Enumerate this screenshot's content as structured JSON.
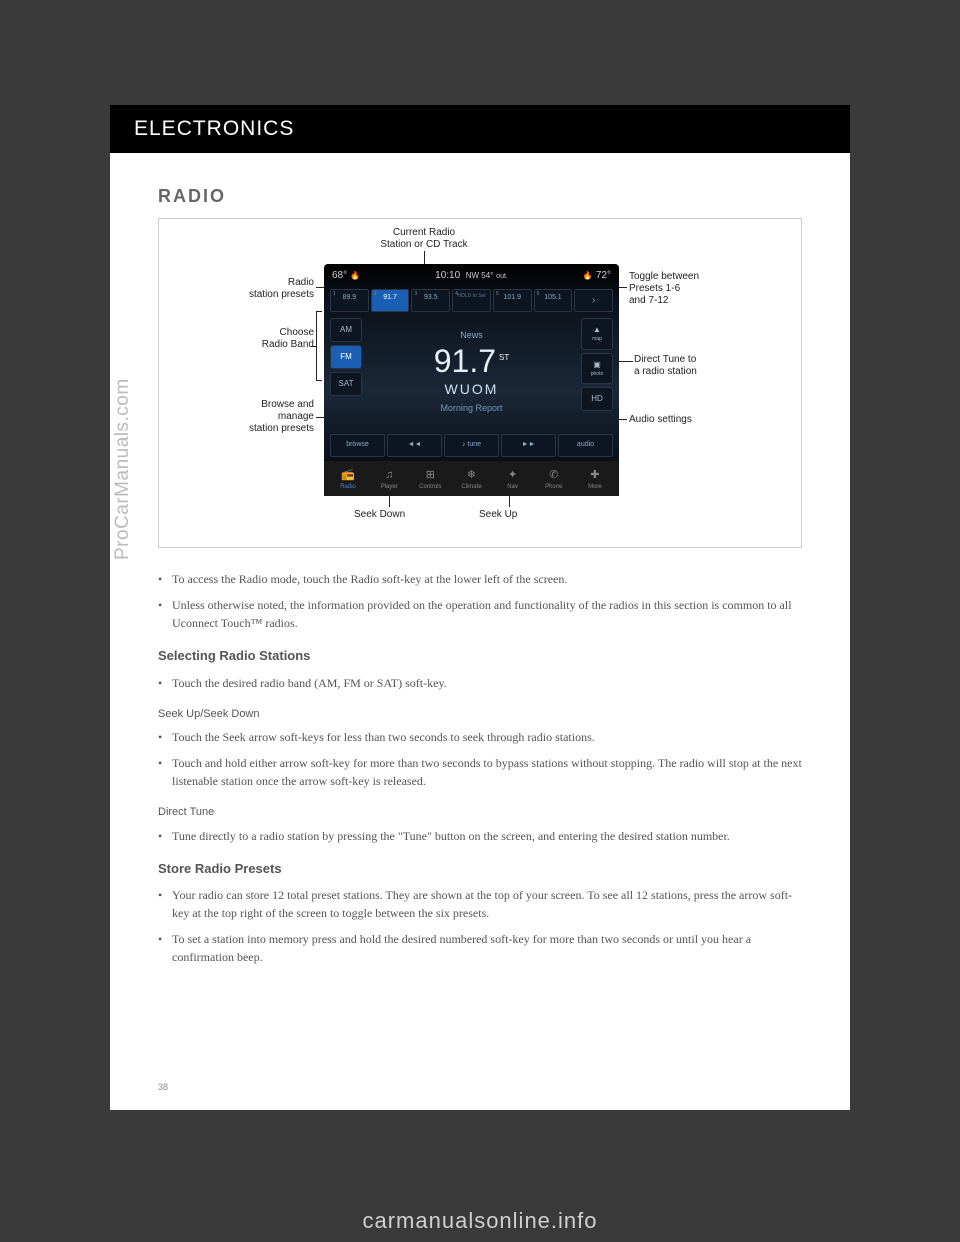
{
  "header": "ELECTRONICS",
  "section_title": "RADIO",
  "callouts": {
    "top": "Current Radio\nStation or CD Track",
    "preset_label": "Radio\nstation presets",
    "band_label": "Choose\nRadio Band",
    "browse_label": "Browse and\nmanage\nstation presets",
    "toggle_label": "Toggle between\nPresets 1-6\nand 7-12",
    "direct_tune": "Direct Tune to\na radio station",
    "audio_settings": "Audio settings",
    "seek_down": "Seek Down",
    "seek_up": "Seek Up"
  },
  "screen": {
    "temp_left": "68°",
    "time": "10:10",
    "compass": "NW 54°",
    "out": "out.",
    "temp_right": "72°",
    "presets": [
      "89.9",
      "91.7",
      "93.5",
      "HOLD to Set",
      "101.9",
      "105.1"
    ],
    "preset_nums": [
      "1",
      "2",
      "3",
      "4",
      "5",
      "6"
    ],
    "preset_sub": [
      "",
      "",
      "",
      "",
      "+2",
      "+2"
    ],
    "bands": [
      "AM",
      "FM",
      "SAT"
    ],
    "genre": "News",
    "freq": "91.7",
    "st": "ST",
    "callsign": "WUOM",
    "program": "Morning Report",
    "side_icons": [
      "map",
      "photo",
      "HD"
    ],
    "controls": [
      "browse",
      "◄◄",
      "tune",
      "►►",
      "audio"
    ],
    "bottom": [
      "Radio",
      "Player",
      "Controls",
      "Climate",
      "Nav",
      "Phone",
      "More"
    ]
  },
  "intro_bullets": [
    "To access the Radio mode, touch the Radio soft-key at the lower left of the screen.",
    "Unless otherwise noted, the information provided on the operation and functionality of the radios in this section is common to all Uconnect Touch™ radios."
  ],
  "selecting": {
    "heading": "Selecting Radio Stations",
    "bullet1": "Touch the desired radio band (AM, FM or SAT) soft-key.",
    "seek_heading": "Seek Up/Seek Down",
    "seek_bullets": [
      "Touch the Seek arrow soft-keys for less than two seconds to seek through radio stations.",
      "Touch and hold either arrow soft-key for more than two seconds to bypass stations without stopping. The radio will stop at the next listenable station once the arrow soft-key is released."
    ],
    "direct_heading": "Direct Tune",
    "direct_bullet": "Tune directly to a radio station by pressing the \"Tune\" button on the screen, and entering the desired station number."
  },
  "store": {
    "heading": "Store Radio Presets",
    "bullets": [
      "Your radio can store 12 total preset stations. They are shown at the top of your screen. To see all 12 stations, press the arrow soft-key at the top right of the screen to toggle between the six presets.",
      "To set a station into memory press and hold the desired numbered soft-key for more than two seconds or until you hear a confirmation beep."
    ]
  },
  "page_num": "38",
  "watermark1": "ProCarManuals.com",
  "watermark2": "carmanualsonline.info"
}
